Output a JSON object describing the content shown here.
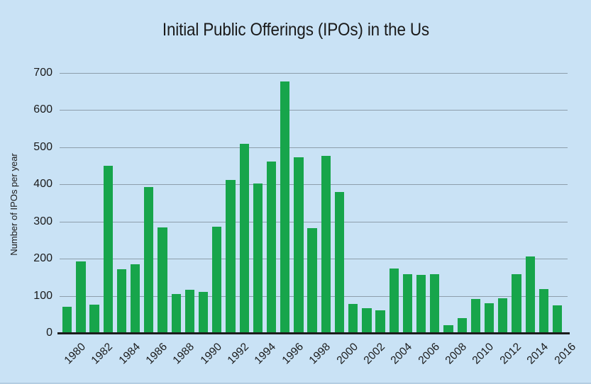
{
  "chart_data": {
    "type": "bar",
    "title": "Initial Public Offerings (IPOs) in the Us",
    "ylabel": "Number of IPOs per year",
    "xlabel": "",
    "ylim": [
      0,
      700
    ],
    "yticks": [
      0,
      100,
      200,
      300,
      400,
      500,
      600,
      700
    ],
    "grid": true,
    "legend": false,
    "xtick_every": 2,
    "categories": [
      "1980",
      "1981",
      "1982",
      "1983",
      "1984",
      "1985",
      "1986",
      "1987",
      "1988",
      "1989",
      "1990",
      "1991",
      "1992",
      "1993",
      "1994",
      "1995",
      "1996",
      "1997",
      "1998",
      "1999",
      "2000",
      "2001",
      "2002",
      "2003",
      "2004",
      "2005",
      "2006",
      "2007",
      "2008",
      "2009",
      "2010",
      "2011",
      "2012",
      "2013",
      "2014",
      "2015",
      "2016"
    ],
    "values": [
      71,
      192,
      77,
      451,
      171,
      186,
      393,
      285,
      105,
      116,
      110,
      286,
      412,
      510,
      403,
      461,
      677,
      474,
      283,
      476,
      380,
      79,
      66,
      62,
      174,
      159,
      157,
      159,
      21,
      41,
      91,
      81,
      93,
      158,
      206,
      118,
      75
    ],
    "colors": {
      "bar": "#17a54b",
      "background": "#c9e2f5",
      "gridline": "#8d9eab",
      "axis": "#1c1c1c",
      "text": "#1a1a1a",
      "bottom_edge": "#b3cde2"
    }
  }
}
